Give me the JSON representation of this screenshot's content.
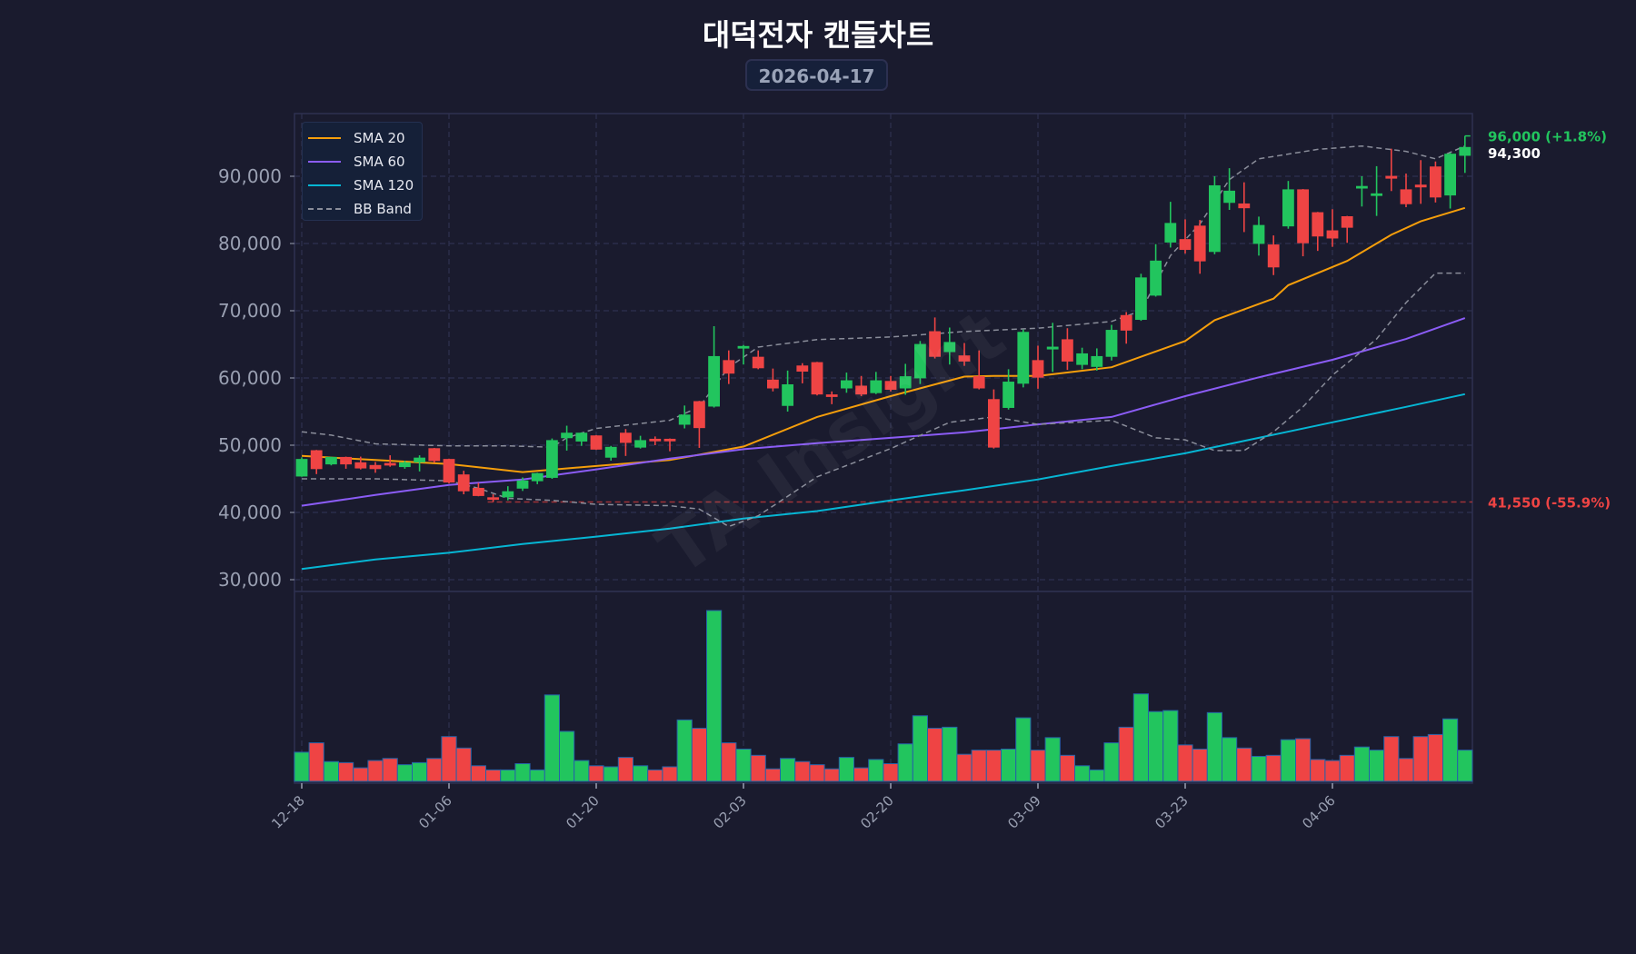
{
  "title": "대덕전자 캔들차트",
  "date": "2026-04-17",
  "watermark": "TA Insight",
  "colors": {
    "background": "#1a1b2e",
    "up": "#22c55e",
    "down": "#ef4444",
    "sma20": "#f59e0b",
    "sma60": "#8b5cf6",
    "sma120": "#06b6d4",
    "bb": "#8a8d9a",
    "grid": "#2e3150",
    "axis_text": "#9aa0b2"
  },
  "legend": [
    {
      "label": "SMA 20",
      "key": "sma20",
      "style": "solid"
    },
    {
      "label": "SMA 60",
      "key": "sma60",
      "style": "solid"
    },
    {
      "label": "SMA 120",
      "key": "sma120",
      "style": "solid"
    },
    {
      "label": "BB Band",
      "key": "bb",
      "style": "dashed"
    }
  ],
  "chart_data": {
    "type": "candlestick",
    "title": "대덕전자 캔들차트",
    "ylim": [
      28200,
      99300
    ],
    "y_ticks": [
      30000,
      40000,
      50000,
      60000,
      70000,
      80000,
      90000
    ],
    "y_tick_labels": [
      "30,000",
      "40,000",
      "50,000",
      "60,000",
      "70,000",
      "80,000",
      "90,000"
    ],
    "x_ticks": [
      0,
      10,
      20,
      30,
      40,
      50,
      60,
      70
    ],
    "x_tick_labels": [
      "12-18",
      "01-06",
      "01-20",
      "02-03",
      "02-20",
      "03-09",
      "03-23",
      "04-06"
    ],
    "grid": true,
    "legend_position": "top-left",
    "ohlc": [
      [
        45400,
        48200,
        45300,
        47900
      ],
      [
        49200,
        49300,
        45700,
        46500
      ],
      [
        47200,
        48300,
        47000,
        48200
      ],
      [
        48200,
        48300,
        46500,
        47200
      ],
      [
        47400,
        48300,
        46400,
        46600
      ],
      [
        47000,
        47500,
        45900,
        46500
      ],
      [
        47300,
        48500,
        46800,
        47100
      ],
      [
        46800,
        47700,
        46500,
        47400
      ],
      [
        47500,
        48500,
        46100,
        48100
      ],
      [
        49500,
        49600,
        47400,
        47700
      ],
      [
        47900,
        48000,
        44300,
        44500
      ],
      [
        45600,
        46200,
        42700,
        43200
      ],
      [
        43600,
        44400,
        42400,
        42500
      ],
      [
        42200,
        42700,
        41550,
        42000
      ],
      [
        42300,
        43900,
        41800,
        43100
      ],
      [
        43600,
        45200,
        43200,
        44700
      ],
      [
        44700,
        45900,
        44200,
        45800
      ],
      [
        45200,
        51000,
        45000,
        50700
      ],
      [
        51100,
        52900,
        49200,
        51800
      ],
      [
        50600,
        51900,
        49900,
        51800
      ],
      [
        51400,
        51500,
        49300,
        49400
      ],
      [
        48200,
        49900,
        47700,
        49700
      ],
      [
        51800,
        52400,
        48400,
        50400
      ],
      [
        49700,
        51400,
        49500,
        50700
      ],
      [
        50900,
        51300,
        50000,
        50700
      ],
      [
        50900,
        51000,
        49100,
        50800
      ],
      [
        53100,
        55900,
        52500,
        54500
      ],
      [
        56500,
        56600,
        49600,
        52600
      ],
      [
        55800,
        67700,
        55600,
        63200
      ],
      [
        62600,
        64100,
        59100,
        60700
      ],
      [
        64500,
        64900,
        62000,
        64700
      ],
      [
        63100,
        64100,
        61300,
        61500
      ],
      [
        59700,
        61400,
        58000,
        58500
      ],
      [
        55900,
        61100,
        55000,
        59000
      ],
      [
        61800,
        62200,
        59200,
        61000
      ],
      [
        62300,
        62400,
        57400,
        57600
      ],
      [
        57500,
        58000,
        56100,
        57300
      ],
      [
        58500,
        60800,
        57800,
        59600
      ],
      [
        58800,
        60300,
        57300,
        57600
      ],
      [
        57800,
        60900,
        57600,
        59600
      ],
      [
        59500,
        60300,
        58000,
        58300
      ],
      [
        58500,
        62100,
        57500,
        60200
      ],
      [
        60000,
        65500,
        59100,
        65000
      ],
      [
        66900,
        69000,
        62900,
        63200
      ],
      [
        63900,
        67500,
        62000,
        65300
      ],
      [
        63300,
        65200,
        61800,
        62500
      ],
      [
        60200,
        64100,
        58300,
        58500
      ],
      [
        56800,
        58300,
        49500,
        49700
      ],
      [
        55600,
        61300,
        55300,
        59400
      ],
      [
        59200,
        67200,
        58600,
        66800
      ],
      [
        62600,
        64800,
        58400,
        60100
      ],
      [
        64300,
        68200,
        60900,
        64600
      ],
      [
        65700,
        67400,
        61200,
        62500
      ],
      [
        62000,
        64500,
        61300,
        63600
      ],
      [
        61700,
        64400,
        61100,
        63200
      ],
      [
        63200,
        67900,
        62600,
        67100
      ],
      [
        69300,
        69800,
        65100,
        67100
      ],
      [
        68700,
        75500,
        68500,
        74900
      ],
      [
        72300,
        79900,
        72100,
        77400
      ],
      [
        80200,
        86200,
        79400,
        83000
      ],
      [
        80600,
        83600,
        78500,
        79100
      ],
      [
        82600,
        83500,
        75500,
        77400
      ],
      [
        78800,
        90000,
        78400,
        88600
      ],
      [
        86100,
        91200,
        85000,
        87800
      ],
      [
        85900,
        89100,
        81700,
        85300
      ],
      [
        80000,
        84000,
        78200,
        82700
      ],
      [
        79800,
        81200,
        75300,
        76500
      ],
      [
        82600,
        89300,
        82200,
        88000
      ],
      [
        88000,
        88100,
        78100,
        80100
      ],
      [
        84600,
        84700,
        78900,
        81100
      ],
      [
        81900,
        85100,
        79500,
        80800
      ],
      [
        84000,
        84100,
        80100,
        82400
      ],
      [
        88300,
        90000,
        85500,
        88500
      ],
      [
        87200,
        91500,
        84100,
        87400
      ],
      [
        90000,
        94100,
        87800,
        89700
      ],
      [
        88000,
        90400,
        85400,
        85900
      ],
      [
        88700,
        92400,
        85900,
        88400
      ],
      [
        91400,
        92200,
        86100,
        86900
      ],
      [
        87200,
        93500,
        85200,
        93300
      ],
      [
        93100,
        96000,
        90500,
        94300
      ]
    ],
    "volume_relative": [
      28,
      37,
      19,
      18,
      13,
      20,
      22,
      16,
      18,
      22,
      43,
      32,
      15,
      11,
      11,
      17,
      11,
      83,
      48,
      20,
      15,
      14,
      23,
      15,
      11,
      14,
      59,
      51,
      164,
      37,
      31,
      25,
      12,
      22,
      19,
      16,
      12,
      23,
      13,
      21,
      17,
      36,
      63,
      51,
      52,
      26,
      30,
      30,
      31,
      61,
      30,
      42,
      25,
      15,
      11,
      37,
      52,
      84,
      67,
      68,
      35,
      31,
      66,
      42,
      32,
      24,
      25,
      40,
      41,
      21,
      20,
      25,
      33,
      30,
      43,
      22,
      43,
      45,
      60,
      30
    ],
    "series": [
      {
        "name": "SMA 20",
        "key": "sma20",
        "points": [
          [
            0,
            48400
          ],
          [
            5,
            47800
          ],
          [
            10,
            47200
          ],
          [
            15,
            46000
          ],
          [
            20,
            46900
          ],
          [
            25,
            47800
          ],
          [
            30,
            49800
          ],
          [
            35,
            54200
          ],
          [
            40,
            57300
          ],
          [
            45,
            60200
          ],
          [
            47,
            60300
          ],
          [
            50,
            60300
          ],
          [
            55,
            61600
          ],
          [
            60,
            65500
          ],
          [
            62,
            68600
          ],
          [
            66,
            71800
          ],
          [
            67,
            73800
          ],
          [
            71,
            77400
          ],
          [
            74,
            81300
          ],
          [
            76,
            83300
          ],
          [
            79,
            85300
          ]
        ]
      },
      {
        "name": "SMA 60",
        "key": "sma60",
        "points": [
          [
            0,
            41000
          ],
          [
            5,
            42600
          ],
          [
            10,
            44100
          ],
          [
            15,
            44900
          ],
          [
            20,
            46400
          ],
          [
            25,
            48000
          ],
          [
            30,
            49400
          ],
          [
            35,
            50300
          ],
          [
            40,
            51100
          ],
          [
            45,
            51900
          ],
          [
            50,
            53100
          ],
          [
            55,
            54200
          ],
          [
            60,
            57300
          ],
          [
            65,
            60100
          ],
          [
            70,
            62700
          ],
          [
            75,
            65800
          ],
          [
            79,
            68900
          ]
        ]
      },
      {
        "name": "SMA 120",
        "key": "sma120",
        "points": [
          [
            0,
            31600
          ],
          [
            5,
            33000
          ],
          [
            10,
            34000
          ],
          [
            15,
            35300
          ],
          [
            20,
            36400
          ],
          [
            25,
            37600
          ],
          [
            30,
            39100
          ],
          [
            35,
            40200
          ],
          [
            40,
            41800
          ],
          [
            45,
            43300
          ],
          [
            50,
            44900
          ],
          [
            55,
            46900
          ],
          [
            60,
            48800
          ],
          [
            65,
            51100
          ],
          [
            70,
            53400
          ],
          [
            75,
            55700
          ],
          [
            79,
            57600
          ]
        ]
      },
      {
        "name": "BB Upper",
        "key": "bb",
        "points": [
          [
            0,
            52000
          ],
          [
            2,
            51500
          ],
          [
            5,
            50200
          ],
          [
            10,
            49900
          ],
          [
            14,
            49900
          ],
          [
            17,
            49700
          ],
          [
            18,
            51100
          ],
          [
            20,
            52500
          ],
          [
            25,
            53700
          ],
          [
            27,
            55700
          ],
          [
            29,
            61600
          ],
          [
            31,
            64600
          ],
          [
            35,
            65700
          ],
          [
            40,
            66100
          ],
          [
            45,
            66900
          ],
          [
            50,
            67400
          ],
          [
            55,
            68400
          ],
          [
            57,
            70000
          ],
          [
            59,
            78200
          ],
          [
            61,
            82900
          ],
          [
            63,
            89500
          ],
          [
            65,
            92600
          ],
          [
            69,
            94000
          ],
          [
            72,
            94500
          ],
          [
            75,
            93700
          ],
          [
            77,
            92600
          ],
          [
            79,
            94500
          ]
        ]
      },
      {
        "name": "BB Lower",
        "key": "bb",
        "points": [
          [
            0,
            45000
          ],
          [
            5,
            45000
          ],
          [
            10,
            44700
          ],
          [
            12,
            43600
          ],
          [
            14,
            42100
          ],
          [
            17,
            41800
          ],
          [
            20,
            41200
          ],
          [
            25,
            41000
          ],
          [
            27,
            40500
          ],
          [
            29,
            37900
          ],
          [
            31,
            39500
          ],
          [
            35,
            45300
          ],
          [
            40,
            49500
          ],
          [
            44,
            53400
          ],
          [
            47,
            54200
          ],
          [
            50,
            53100
          ],
          [
            55,
            53700
          ],
          [
            58,
            51100
          ],
          [
            60,
            50800
          ],
          [
            62,
            49200
          ],
          [
            64,
            49200
          ],
          [
            66,
            52000
          ],
          [
            68,
            55700
          ],
          [
            70,
            60400
          ],
          [
            73,
            65800
          ],
          [
            75,
            71200
          ],
          [
            77,
            75600
          ],
          [
            79,
            75600
          ]
        ]
      }
    ],
    "annotations": {
      "high": {
        "value": 96000,
        "label": "96,000 (+1.8%)"
      },
      "last": {
        "value": 94300,
        "label": "94,300"
      },
      "low": {
        "value": 41550,
        "from_index": 13,
        "label": "41,550 (-55.9%)"
      }
    }
  }
}
